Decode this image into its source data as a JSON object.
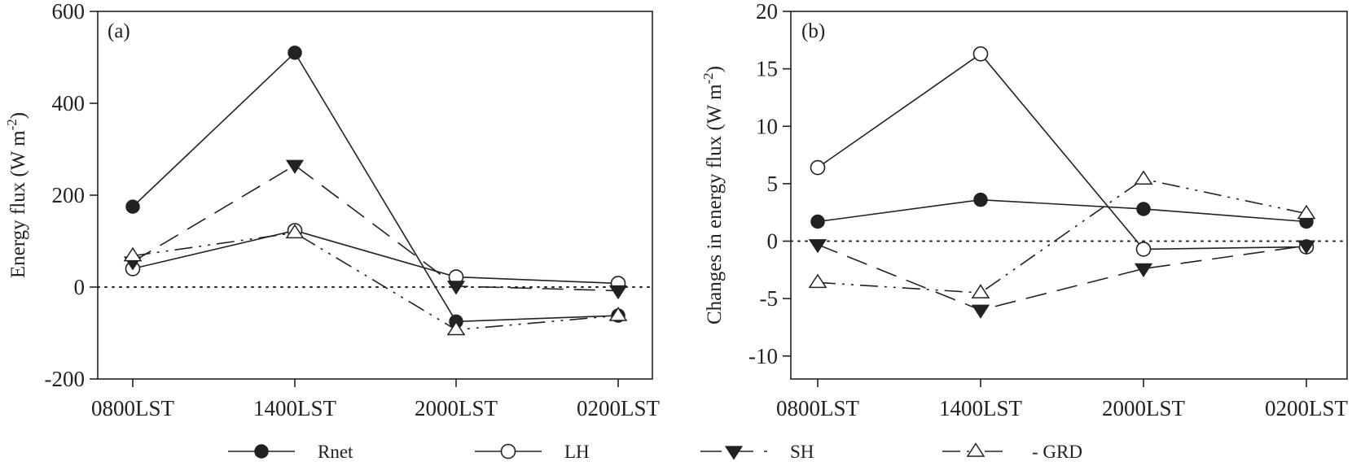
{
  "chart_data": [
    {
      "type": "line",
      "panel_label": "(a)",
      "categories": [
        "0800LST",
        "1400LST",
        "2000LST",
        "0200LST"
      ],
      "ylabel": "Energy flux (W m",
      "ylabel_sup": "-2",
      "ylabel_end": ")",
      "ylim": [
        -200,
        600
      ],
      "yticks": [
        -200,
        0,
        200,
        400,
        600
      ],
      "reference_line": 0,
      "series": [
        {
          "name": "Rnet",
          "values": [
            175,
            510,
            -75,
            -62
          ],
          "marker": "filled-circle",
          "dash": "solid"
        },
        {
          "name": "LH",
          "values": [
            40,
            123,
            22,
            8
          ],
          "marker": "open-circle",
          "dash": "solid"
        },
        {
          "name": "SH",
          "values": [
            55,
            265,
            2,
            -8
          ],
          "marker": "filled-triangle-down",
          "dash": "long-dash"
        },
        {
          "name": "GRD",
          "values": [
            68,
            118,
            -93,
            -62
          ],
          "marker": "open-triangle-up",
          "dash": "dash-dot-dot"
        }
      ]
    },
    {
      "type": "line",
      "panel_label": "(b)",
      "categories": [
        "0800LST",
        "1400LST",
        "2000LST",
        "0200LST"
      ],
      "ylabel": "Changes in energy flux (W m",
      "ylabel_sup": "-2",
      "ylabel_end": ")",
      "ylim": [
        -12,
        20
      ],
      "yticks": [
        -10,
        -5,
        0,
        5,
        10,
        15,
        20
      ],
      "reference_line": 0,
      "series": [
        {
          "name": "Rnet",
          "values": [
            1.7,
            3.6,
            2.8,
            1.7
          ],
          "marker": "filled-circle",
          "dash": "solid"
        },
        {
          "name": "LH",
          "values": [
            6.4,
            16.3,
            -0.7,
            -0.5
          ],
          "marker": "open-circle",
          "dash": "solid"
        },
        {
          "name": "SH",
          "values": [
            -0.3,
            -6.0,
            -2.4,
            -0.4
          ],
          "marker": "filled-triangle-down",
          "dash": "long-dash"
        },
        {
          "name": "GRD",
          "values": [
            -3.6,
            -4.5,
            5.4,
            2.4
          ],
          "marker": "open-triangle-up",
          "dash": "dash-dot-dot"
        }
      ]
    }
  ],
  "legend": {
    "position": "bottom",
    "items": [
      {
        "label": "Rnet",
        "marker": "filled-circle",
        "dash": "solid"
      },
      {
        "label": "LH",
        "marker": "open-circle",
        "dash": "solid"
      },
      {
        "label": "SH",
        "marker": "filled-triangle-down",
        "dash": "long-dash"
      },
      {
        "label": "- GRD",
        "marker": "open-triangle-up",
        "dash": "dash-dot-dot"
      }
    ]
  },
  "colors": {
    "line": "#222222",
    "axis": "#222222",
    "background": "#ffffff"
  }
}
